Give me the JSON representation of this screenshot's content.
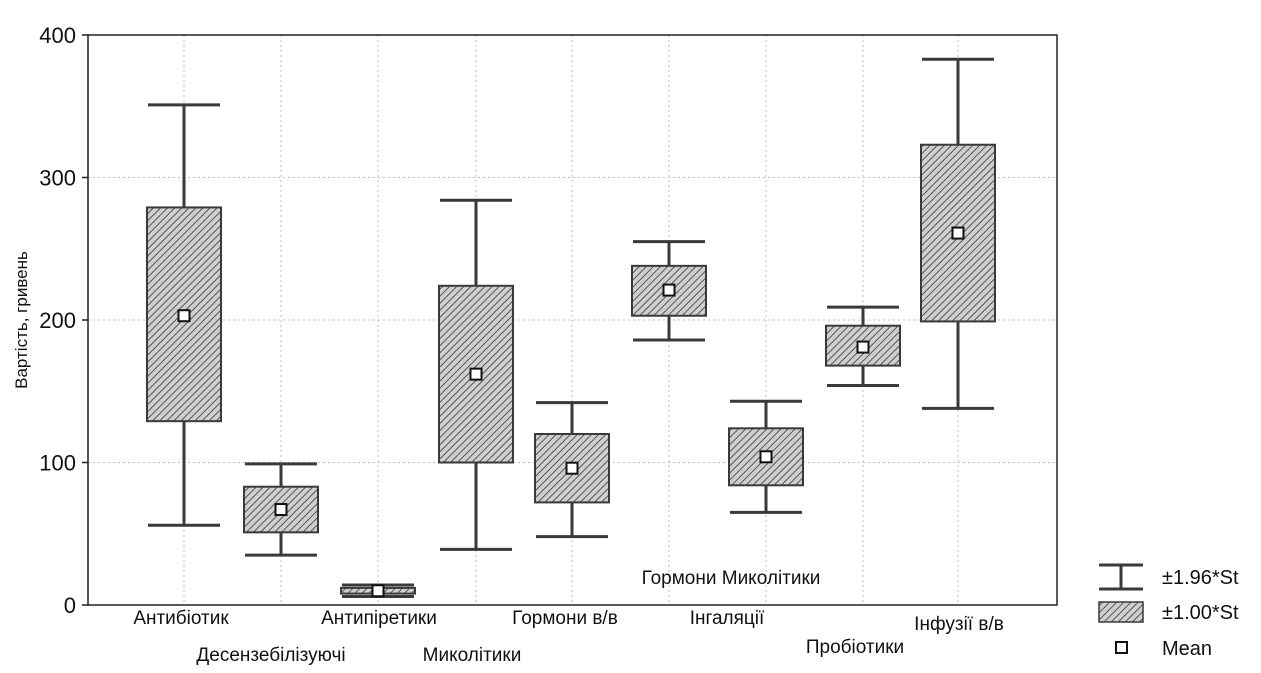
{
  "chart_data": {
    "type": "box",
    "ylabel": "Вартість, гривень",
    "ylim": [
      0,
      400
    ],
    "yticks": [
      0,
      100,
      200,
      300,
      400
    ],
    "grid": true,
    "categories": [
      "Антибіотик",
      "Десензебілізуючі",
      "Антипіретики",
      "Миколітики",
      "Гормони в/в",
      "Гормони Миколітики",
      "Інгаляції",
      "Пробіотики",
      "Інфузії в/в"
    ],
    "series": [
      {
        "name": "Mean",
        "values": [
          203,
          67,
          10,
          162,
          96,
          221,
          104,
          181,
          261
        ]
      },
      {
        "name": "±1.00*Std",
        "low": [
          129,
          51,
          8,
          100,
          72,
          203,
          84,
          168,
          199
        ],
        "high": [
          279,
          83,
          12,
          224,
          120,
          238,
          124,
          196,
          323
        ]
      },
      {
        "name": "±1.96*Std",
        "low": [
          56,
          35,
          6,
          39,
          48,
          186,
          65,
          154,
          138
        ],
        "high": [
          351,
          99,
          14,
          284,
          142,
          255,
          143,
          209,
          383
        ]
      }
    ],
    "legend": {
      "position": "bottom-right",
      "items": [
        {
          "label": "±1.96*St",
          "icon": "whisker-icon"
        },
        {
          "label": "±1.00*St",
          "icon": "hatched-box-icon"
        },
        {
          "label": "Mean",
          "icon": "mean-marker-icon"
        }
      ]
    },
    "colors": {
      "stroke": "#3a3a3a",
      "box_fill": "#c8c8c8",
      "grid": "#bdbdbd"
    }
  }
}
